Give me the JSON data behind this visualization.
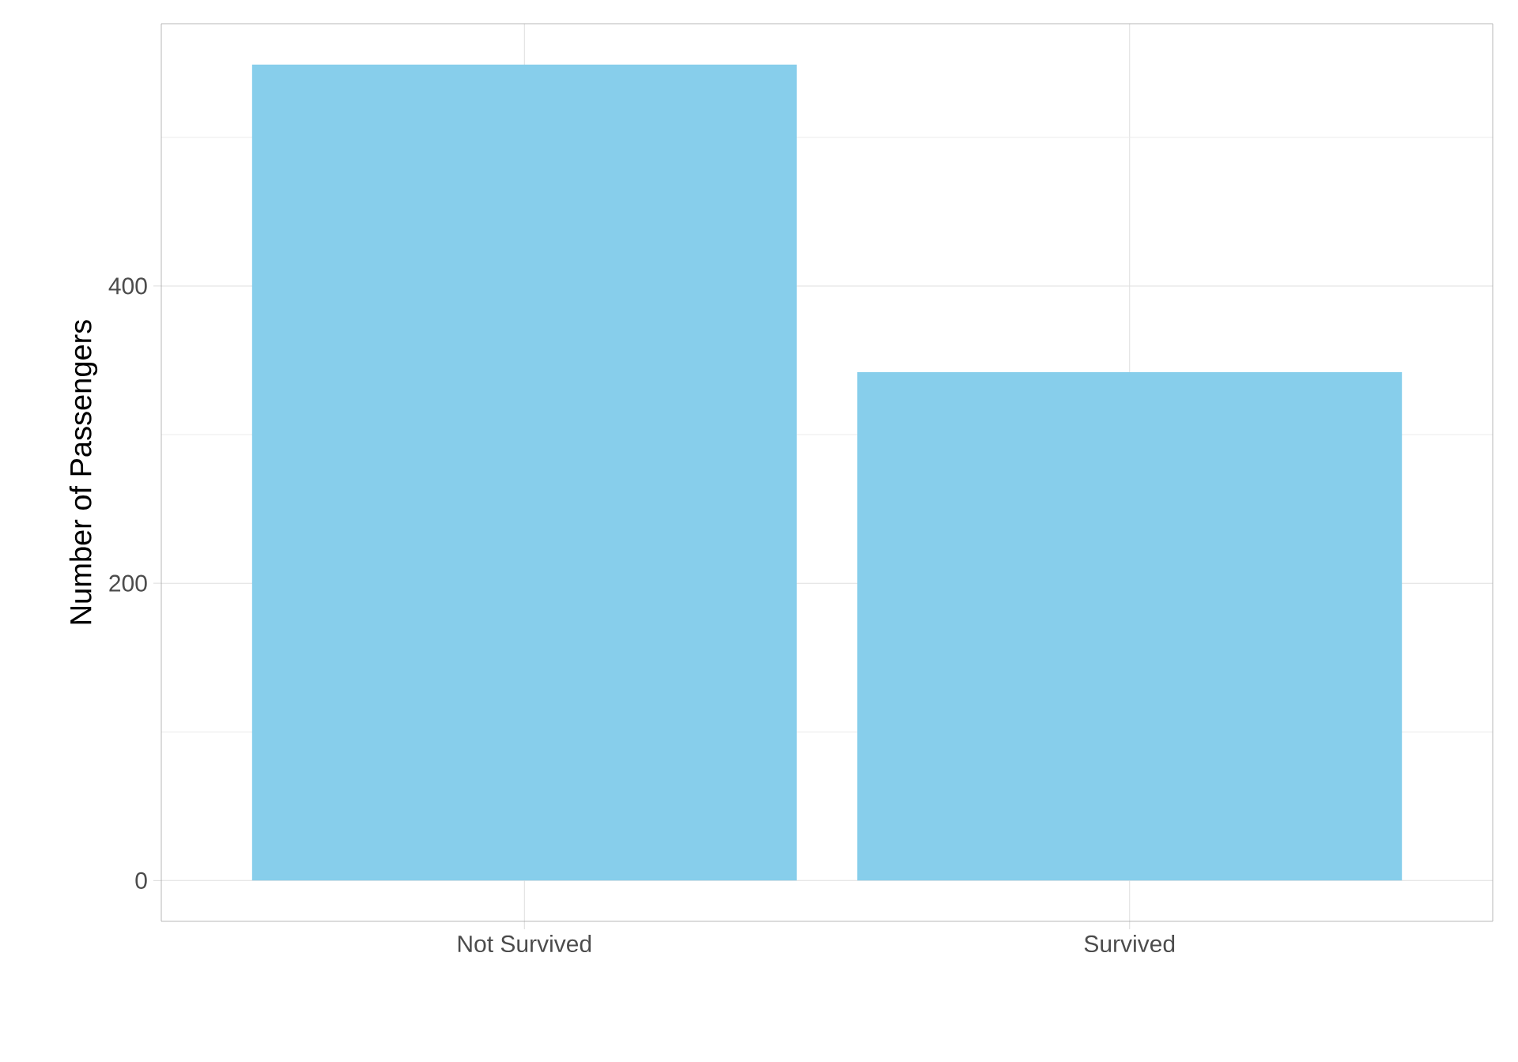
{
  "chart_data": {
    "type": "bar",
    "ylabel": "Number of Passengers",
    "categories": [
      "Not Survived",
      "Survived"
    ],
    "values": [
      549,
      342
    ],
    "color": "#87ceeb",
    "ylim": [
      -27.45,
      576.45
    ],
    "yticks": [
      0,
      {
        "value": 100,
        "label": null
      },
      200,
      {
        "value": 300,
        "label": null
      },
      400,
      {
        "value": 500,
        "label": null
      }
    ],
    "grid": true
  }
}
